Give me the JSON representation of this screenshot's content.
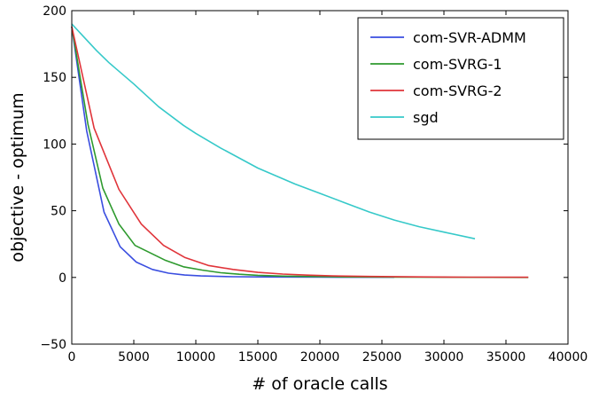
{
  "chart_data": {
    "type": "line",
    "xlabel": "# of oracle calls",
    "ylabel": "objective - optimum",
    "xlim": [
      0,
      40000
    ],
    "ylim": [
      -50,
      200
    ],
    "x_ticks": [
      0,
      5000,
      10000,
      15000,
      20000,
      25000,
      30000,
      35000,
      40000
    ],
    "x_tick_labels": [
      "0",
      "5000",
      "10000",
      "15000",
      "20000",
      "25000",
      "30000",
      "35000",
      "40000"
    ],
    "y_ticks": [
      -50,
      0,
      50,
      100,
      150,
      200
    ],
    "y_tick_labels": [
      "−50",
      "0",
      "50",
      "100",
      "150",
      "200"
    ],
    "legend_position": "top-right",
    "grid": false,
    "series": [
      {
        "name": "com-SVR-ADMM",
        "color": "#3a4ee0",
        "points": [
          [
            0,
            188
          ],
          [
            1200,
            110
          ],
          [
            2600,
            49
          ],
          [
            3900,
            23
          ],
          [
            5200,
            11.5
          ],
          [
            6500,
            6
          ],
          [
            7800,
            3.2
          ],
          [
            9100,
            1.8
          ],
          [
            10400,
            1.1
          ],
          [
            13000,
            0.5
          ],
          [
            16000,
            0.3
          ],
          [
            20000,
            0.2
          ],
          [
            26000,
            0.1
          ]
        ]
      },
      {
        "name": "com-SVRG-1",
        "color": "#2e9a2e",
        "points": [
          [
            0,
            188
          ],
          [
            1300,
            115
          ],
          [
            2500,
            67
          ],
          [
            3800,
            40
          ],
          [
            5100,
            24
          ],
          [
            7500,
            13
          ],
          [
            9000,
            8
          ],
          [
            10500,
            5.5
          ],
          [
            12000,
            3.5
          ],
          [
            13500,
            2.4
          ],
          [
            15000,
            1.6
          ],
          [
            17000,
            1
          ],
          [
            19000,
            0.7
          ],
          [
            22000,
            0.4
          ],
          [
            26000,
            0.2
          ],
          [
            30000,
            0.1
          ],
          [
            36800,
            0
          ]
        ]
      },
      {
        "name": "com-SVRG-2",
        "color": "#e0343a",
        "points": [
          [
            0,
            188
          ],
          [
            1800,
            112
          ],
          [
            3800,
            66
          ],
          [
            5600,
            40
          ],
          [
            7400,
            24
          ],
          [
            9100,
            15
          ],
          [
            11000,
            9
          ],
          [
            13000,
            6
          ],
          [
            15000,
            3.8
          ],
          [
            17000,
            2.5
          ],
          [
            19000,
            1.7
          ],
          [
            21000,
            1.1
          ],
          [
            24000,
            0.7
          ],
          [
            28000,
            0.4
          ],
          [
            32000,
            0.2
          ],
          [
            36800,
            0.1
          ]
        ]
      },
      {
        "name": "sgd",
        "color": "#36c9c9",
        "points": [
          [
            0,
            190
          ],
          [
            1000,
            180
          ],
          [
            2000,
            170
          ],
          [
            3000,
            161
          ],
          [
            5000,
            145
          ],
          [
            7000,
            128
          ],
          [
            9000,
            114
          ],
          [
            10000,
            108
          ],
          [
            12000,
            97
          ],
          [
            15000,
            82
          ],
          [
            18000,
            70
          ],
          [
            20000,
            63
          ],
          [
            22000,
            56
          ],
          [
            24000,
            49
          ],
          [
            26000,
            43
          ],
          [
            28000,
            38
          ],
          [
            30000,
            34
          ],
          [
            32500,
            29
          ]
        ]
      }
    ]
  }
}
